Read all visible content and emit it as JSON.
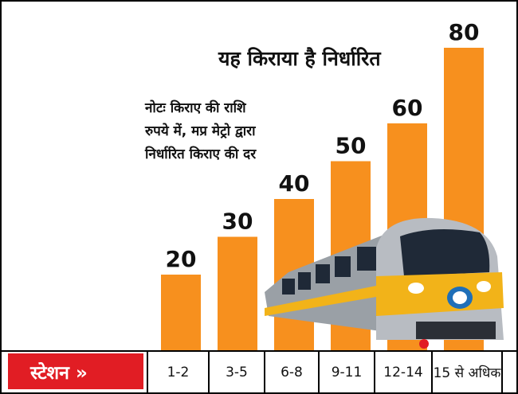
{
  "chart_data": {
    "type": "bar",
    "title": "यह किराया है निर्धारित",
    "note_lines": [
      "नोटः किराए की राशि",
      "रुपये में, मप्र मेट्रो द्वारा",
      "निर्धारित किराए की दर"
    ],
    "axis_label": "स्टेशन »",
    "categories": [
      "1-2",
      "3-5",
      "6-8",
      "9-11",
      "12-14",
      "15 से अधिक"
    ],
    "values": [
      20,
      30,
      40,
      50,
      60,
      80
    ],
    "data_labels": [
      "20",
      "30",
      "40",
      "50",
      "60",
      "80"
    ],
    "ylim": [
      0,
      80
    ],
    "bar_color": "#f7901e",
    "label_color": "#111111",
    "badge_color": "#e11d24",
    "grid": false,
    "decoration": "metro-train-icon"
  }
}
